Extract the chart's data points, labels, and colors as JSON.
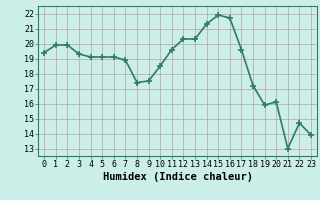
{
  "x": [
    0,
    1,
    2,
    3,
    4,
    5,
    6,
    7,
    8,
    9,
    10,
    11,
    12,
    13,
    14,
    15,
    16,
    17,
    18,
    19,
    20,
    21,
    22,
    23
  ],
  "y": [
    19.4,
    19.9,
    19.9,
    19.3,
    19.1,
    19.1,
    19.1,
    18.9,
    17.4,
    17.5,
    18.5,
    19.6,
    20.3,
    20.3,
    21.3,
    21.9,
    21.7,
    19.6,
    17.2,
    15.9,
    16.1,
    13.0,
    14.7,
    13.9
  ],
  "line_color": "#2d7a6e",
  "marker": "+",
  "marker_size": 4,
  "xlabel": "Humidex (Indice chaleur)",
  "ylim": [
    12.5,
    22.5
  ],
  "xlim": [
    -0.5,
    23.5
  ],
  "yticks": [
    13,
    14,
    15,
    16,
    17,
    18,
    19,
    20,
    21,
    22
  ],
  "xticks": [
    0,
    1,
    2,
    3,
    4,
    5,
    6,
    7,
    8,
    9,
    10,
    11,
    12,
    13,
    14,
    15,
    16,
    17,
    18,
    19,
    20,
    21,
    22,
    23
  ],
  "background_color": "#cceee8",
  "grid_color": "#b8a0a0",
  "xlabel_fontsize": 7.5,
  "tick_fontsize": 6.0,
  "linewidth": 1.2
}
